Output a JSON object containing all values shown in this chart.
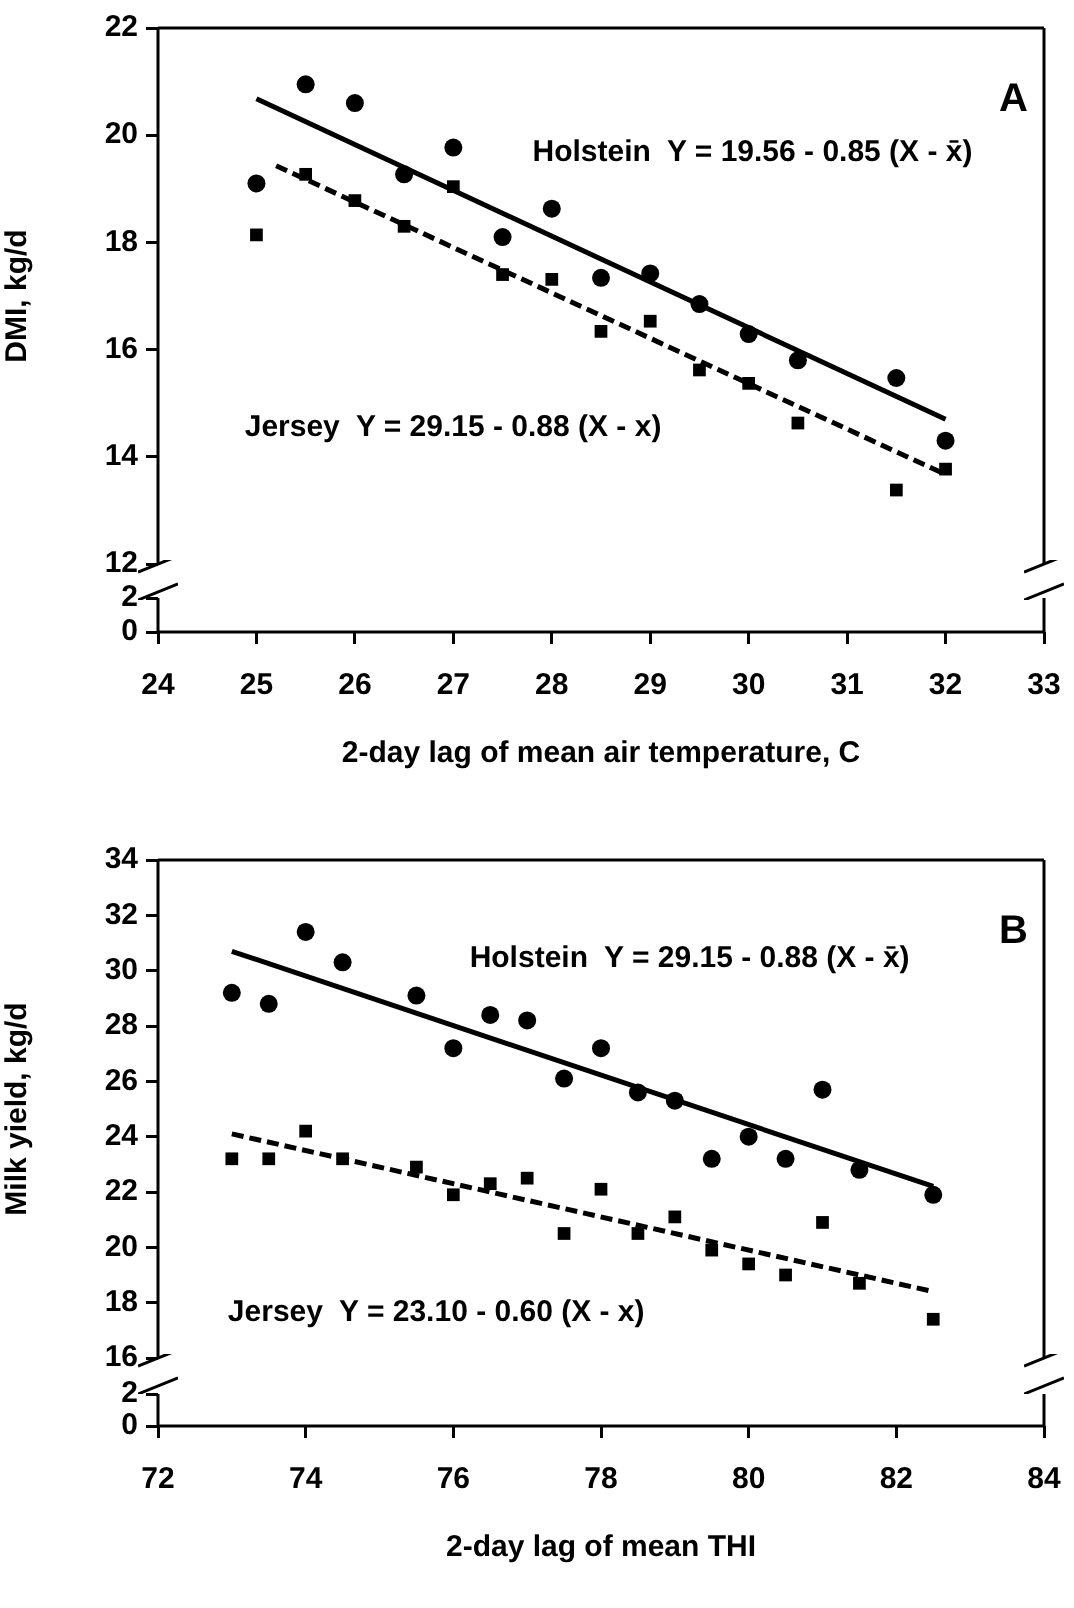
{
  "chart_data": [
    {
      "type": "scatter",
      "ylabel": "DMI, kg/d",
      "xlim": [
        24,
        33
      ],
      "xticks": [
        24,
        25,
        26,
        27,
        28,
        29,
        30,
        31,
        32,
        33
      ],
      "ylim": [
        12,
        22
      ],
      "yticks": [
        12,
        14,
        16,
        18,
        20,
        22
      ],
      "tick_labels": "y",
      "series": [
        {
          "marker": "circle",
          "color": "#000000",
          "x": [
            25,
            25.5,
            26,
            26.5,
            27,
            27.5,
            28,
            28.5,
            29,
            29.5,
            30,
            30.5,
            31.5,
            32
          ],
          "values": [
            19.1,
            20.95,
            20.6,
            19.27,
            19.77,
            18.1,
            18.63,
            17.34,
            17.42,
            16.85,
            16.29,
            15.8,
            15.47,
            14.3
          ]
        },
        {
          "marker": "square",
          "color": "#000000",
          "x": [
            25,
            25.5,
            26,
            26.5,
            27,
            27.5,
            28,
            28.5,
            29,
            29.5,
            30,
            30.5,
            31.5,
            32
          ],
          "values": [
            18.14,
            19.27,
            18.78,
            18.3,
            19.04,
            17.4,
            17.31,
            16.34,
            16.53,
            15.62,
            15.37,
            14.63,
            13.38,
            13.77
          ]
        },
        {
          "type": "line",
          "marker": "none",
          "line_style": "solid",
          "color": "#000000",
          "x": [
            25,
            32
          ],
          "values": [
            20.68,
            14.7
          ]
        },
        {
          "type": "line",
          "marker": "none",
          "line_style": "dashed",
          "color": "#000000",
          "x": [
            25.2,
            32
          ],
          "values": [
            19.43,
            13.67
          ]
        }
      ],
      "annotations": [
        "A",
        "Holstein  Y = 19.56 - 0.85 (X - x̄)",
        "Jersey  Y = 29.15 - 0.88 (X - x)"
      ]
    },
    {
      "type": "scatter",
      "xlabel": "2-day lag of mean air temperature, C",
      "xlim": [
        24,
        33
      ],
      "xticks": [
        24,
        25,
        26,
        27,
        28,
        29,
        30,
        31,
        32,
        33
      ],
      "ylim": [
        0,
        2
      ],
      "yticks": [
        0,
        2
      ]
    },
    {
      "type": "scatter",
      "ylabel": "Milk yield, kg/d",
      "xlim": [
        72,
        84
      ],
      "xticks": [
        72,
        74,
        76,
        78,
        80,
        82,
        84
      ],
      "ylim": [
        16,
        34
      ],
      "yticks": [
        16,
        18,
        20,
        22,
        24,
        26,
        28,
        30,
        32,
        34
      ],
      "tick_labels": "y",
      "series": [
        {
          "marker": "circle",
          "color": "#000000",
          "x": [
            73,
            73.5,
            74,
            74.5,
            75.5,
            76,
            76.5,
            77,
            77.5,
            78,
            78.5,
            79,
            79.5,
            80,
            80.5,
            81,
            81.5,
            82.5
          ],
          "values": [
            29.2,
            28.8,
            31.4,
            30.3,
            29.1,
            27.2,
            28.4,
            28.2,
            26.1,
            27.2,
            25.6,
            25.3,
            23.2,
            24.0,
            23.2,
            25.7,
            22.8,
            21.9
          ]
        },
        {
          "marker": "square",
          "color": "#000000",
          "x": [
            73,
            73.5,
            74,
            74.5,
            75.5,
            76,
            76.5,
            77,
            77.5,
            78,
            78.5,
            79,
            79.5,
            80,
            80.5,
            81,
            81.5,
            82.5
          ],
          "values": [
            23.2,
            23.2,
            24.2,
            23.2,
            22.9,
            21.9,
            22.3,
            22.5,
            20.5,
            22.1,
            20.5,
            21.1,
            19.9,
            19.4,
            19.0,
            20.9,
            18.7,
            17.4
          ]
        },
        {
          "type": "line",
          "marker": "none",
          "line_style": "solid",
          "color": "#000000",
          "x": [
            73,
            82.5
          ],
          "values": [
            30.7,
            22.2
          ]
        },
        {
          "type": "line",
          "marker": "none",
          "line_style": "dashed",
          "color": "#000000",
          "x": [
            73,
            82.5
          ],
          "values": [
            24.1,
            18.4
          ]
        }
      ],
      "annotations": [
        "B",
        "Holstein  Y = 29.15 - 0.88 (X - x̄)",
        "Jersey  Y = 23.10 - 0.60 (X - x)"
      ]
    },
    {
      "type": "scatter",
      "xlabel": "2-day lag of mean THI",
      "xlim": [
        72,
        84
      ],
      "xticks": [
        72,
        74,
        76,
        78,
        80,
        82,
        84
      ],
      "ylim": [
        0,
        2
      ],
      "yticks": [
        0,
        2
      ]
    }
  ]
}
